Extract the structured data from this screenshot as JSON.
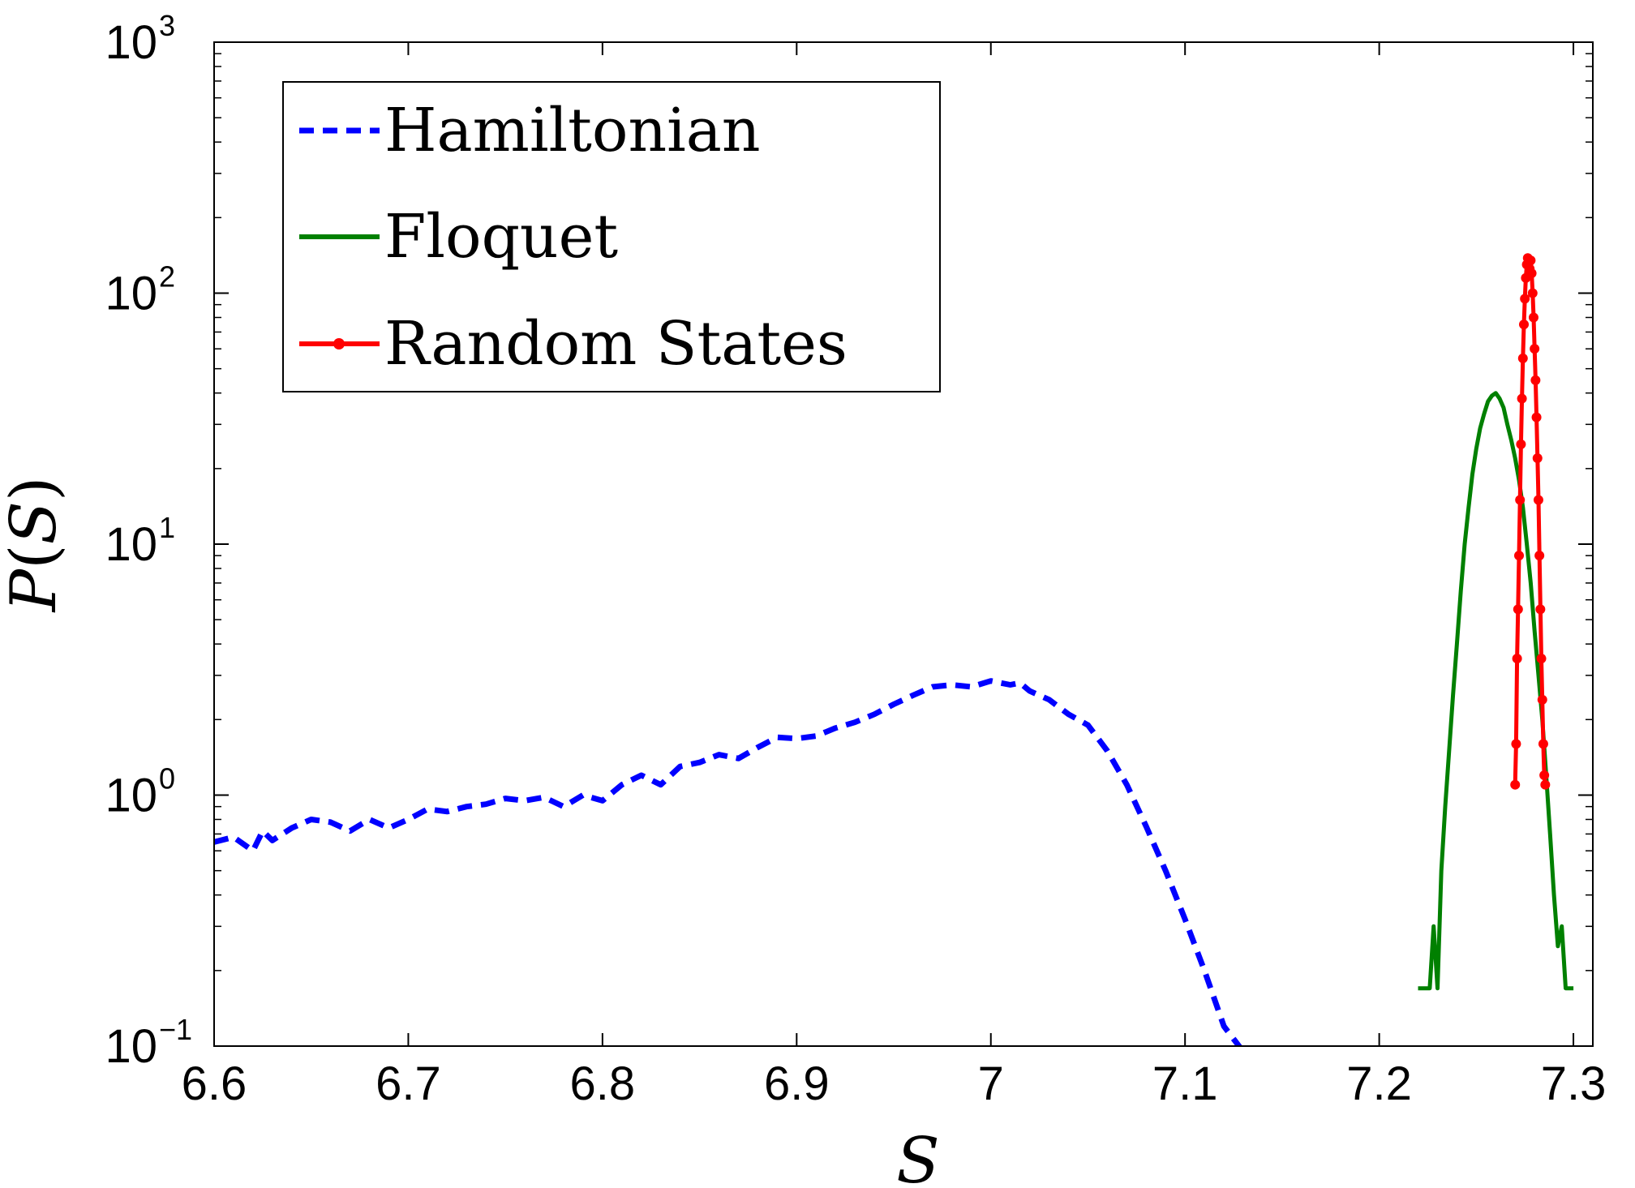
{
  "chart_data": {
    "type": "line",
    "title": "",
    "xlabel": "S",
    "ylabel": "P(S)",
    "ylabel_parts": {
      "func": "P",
      "open": "(",
      "var": "S",
      "close": ")"
    },
    "xlim": [
      6.6,
      7.31
    ],
    "ylim": [
      0.1,
      1000
    ],
    "yscale": "log",
    "grid": false,
    "legend_position": "top-left",
    "x_ticks": [
      "6.6",
      "6.7",
      "6.8",
      "6.9",
      "7",
      "7.1",
      "7.2",
      "7.3"
    ],
    "y_ticks": [
      {
        "value": 0.1,
        "base": "10",
        "exp": "−1"
      },
      {
        "value": 1,
        "base": "10",
        "exp": "0"
      },
      {
        "value": 10,
        "base": "10",
        "exp": "1"
      },
      {
        "value": 100,
        "base": "10",
        "exp": "2"
      },
      {
        "value": 1000,
        "base": "10",
        "exp": "3"
      }
    ],
    "series": [
      {
        "name": "Hamiltonian",
        "color": "#0000ff",
        "style": "dashed",
        "x": [
          6.6,
          6.61,
          6.62,
          6.625,
          6.63,
          6.64,
          6.65,
          6.66,
          6.67,
          6.68,
          6.69,
          6.7,
          6.71,
          6.72,
          6.73,
          6.74,
          6.75,
          6.76,
          6.77,
          6.78,
          6.79,
          6.8,
          6.81,
          6.82,
          6.83,
          6.84,
          6.85,
          6.86,
          6.87,
          6.88,
          6.89,
          6.9,
          6.91,
          6.92,
          6.93,
          6.94,
          6.95,
          6.96,
          6.97,
          6.98,
          6.99,
          7.0,
          7.01,
          7.015,
          7.02,
          7.03,
          7.04,
          7.05,
          7.06,
          7.07,
          7.08,
          7.09,
          7.1,
          7.11,
          7.12,
          7.13
        ],
        "y": [
          0.65,
          0.68,
          0.6,
          0.72,
          0.66,
          0.74,
          0.8,
          0.78,
          0.72,
          0.8,
          0.74,
          0.8,
          0.88,
          0.86,
          0.9,
          0.92,
          0.97,
          0.95,
          0.98,
          0.9,
          1.0,
          0.95,
          1.1,
          1.2,
          1.1,
          1.3,
          1.35,
          1.45,
          1.4,
          1.55,
          1.7,
          1.68,
          1.72,
          1.85,
          1.95,
          2.1,
          2.3,
          2.5,
          2.7,
          2.75,
          2.7,
          2.85,
          2.75,
          2.8,
          2.6,
          2.4,
          2.1,
          1.9,
          1.5,
          1.1,
          0.75,
          0.5,
          0.32,
          0.2,
          0.12,
          0.095
        ]
      },
      {
        "name": "Floquet",
        "color": "#008000",
        "style": "solid",
        "x": [
          7.22,
          7.226,
          7.228,
          7.23,
          7.232,
          7.234,
          7.236,
          7.238,
          7.24,
          7.242,
          7.244,
          7.246,
          7.248,
          7.25,
          7.252,
          7.254,
          7.256,
          7.258,
          7.26,
          7.262,
          7.264,
          7.266,
          7.268,
          7.27,
          7.272,
          7.274,
          7.276,
          7.278,
          7.28,
          7.282,
          7.284,
          7.286,
          7.288,
          7.29,
          7.292,
          7.294,
          7.296,
          7.3
        ],
        "y": [
          0.17,
          0.17,
          0.3,
          0.17,
          0.5,
          0.9,
          1.5,
          2.5,
          4.0,
          6.5,
          10.0,
          14.0,
          19.0,
          24.0,
          29.0,
          33.0,
          37.0,
          39.0,
          40.0,
          38.0,
          35.0,
          30.0,
          26.0,
          22.0,
          18.0,
          14.0,
          10.0,
          7.0,
          4.5,
          3.0,
          2.0,
          1.2,
          0.7,
          0.4,
          0.25,
          0.3,
          0.17,
          0.17
        ]
      },
      {
        "name": "Random States",
        "color": "#ff0000",
        "style": "solid-markers",
        "x": [
          7.27,
          7.2705,
          7.271,
          7.2715,
          7.272,
          7.2725,
          7.273,
          7.2735,
          7.274,
          7.2745,
          7.275,
          7.2755,
          7.276,
          7.2765,
          7.277,
          7.2775,
          7.278,
          7.2785,
          7.279,
          7.2795,
          7.28,
          7.2805,
          7.281,
          7.2815,
          7.282,
          7.2825,
          7.283,
          7.2835,
          7.284,
          7.2845,
          7.285,
          7.2855
        ],
        "y": [
          1.1,
          1.6,
          3.5,
          5.5,
          9.0,
          15.0,
          25.0,
          38.0,
          55.0,
          75.0,
          95.0,
          115.0,
          130.0,
          138.0,
          132.0,
          125.0,
          135.0,
          120.0,
          100.0,
          80.0,
          60.0,
          45.0,
          32.0,
          22.0,
          15.0,
          9.0,
          5.5,
          3.5,
          2.4,
          1.6,
          1.2,
          1.1
        ]
      }
    ]
  }
}
